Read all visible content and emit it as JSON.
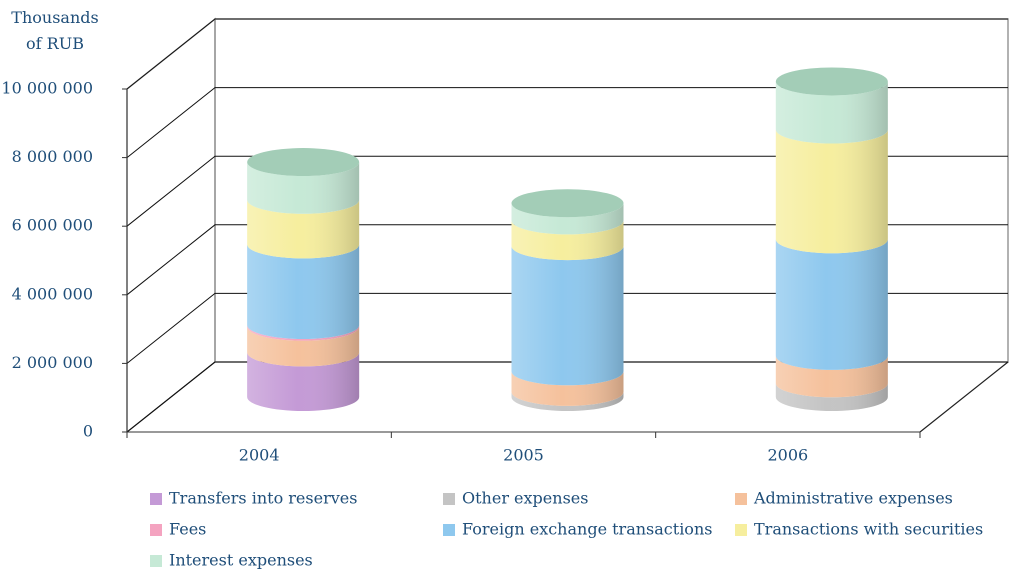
{
  "chart_data": {
    "type": "cylinder_stacked",
    "y_axis_label": "Thousands of RUB",
    "categories": [
      "2004",
      "2005",
      "2006"
    ],
    "ylim": [
      0,
      10000000
    ],
    "yticks": [
      {
        "value": 0,
        "label": "0"
      },
      {
        "value": 2000000,
        "label": "2 000 000"
      },
      {
        "value": 4000000,
        "label": "4 000 000"
      },
      {
        "value": 6000000,
        "label": "6 000 000"
      },
      {
        "value": 8000000,
        "label": "8 000 000"
      },
      {
        "value": 10000000,
        "label": "10 000 000"
      }
    ],
    "grid": true,
    "series": [
      {
        "name": "Transfers into reserves",
        "color": "#c49ad6",
        "values": [
          1300000,
          0,
          0
        ]
      },
      {
        "name": "Other expenses",
        "color": "#c4c4c4",
        "values": [
          0,
          150000,
          400000
        ]
      },
      {
        "name": "Administrative expenses",
        "color": "#f5c19c",
        "values": [
          750000,
          600000,
          800000
        ]
      },
      {
        "name": "Fees",
        "color": "#f4a3c0",
        "values": [
          50000,
          0,
          0
        ]
      },
      {
        "name": "Foreign exchange transactions",
        "color": "#8ec8ee",
        "values": [
          2350000,
          3650000,
          3400000
        ]
      },
      {
        "name": "Transactions with securities",
        "color": "#f6ee9e",
        "values": [
          1300000,
          750000,
          3200000
        ]
      },
      {
        "name": "Interest expenses",
        "color": "#c6e9d6",
        "values": [
          1100000,
          500000,
          1400000
        ]
      }
    ]
  }
}
